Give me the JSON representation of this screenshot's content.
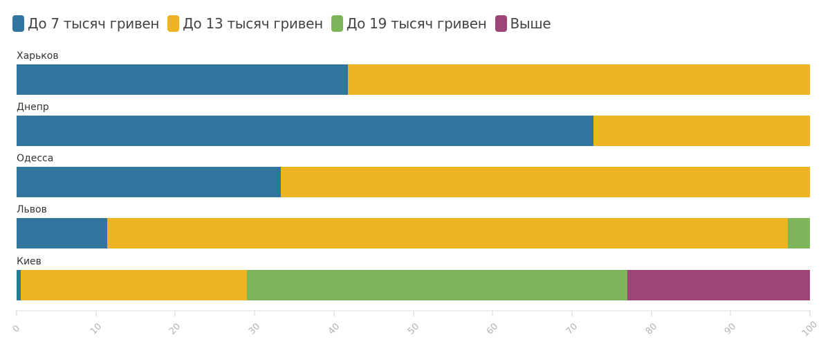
{
  "chart_data": {
    "type": "bar",
    "orientation": "horizontal",
    "stacked": true,
    "title": "",
    "xlabel": "",
    "ylabel": "",
    "xlim": [
      0,
      100
    ],
    "xticks": [
      0,
      10,
      20,
      30,
      40,
      50,
      60,
      70,
      80,
      90,
      100
    ],
    "grid": false,
    "legend_position": "top-left",
    "categories": [
      "Харьков",
      "Днепр",
      "Одесса",
      "Львов",
      "Киев"
    ],
    "series": [
      {
        "name": "До 7 тысяч гривен",
        "color": "#32769f",
        "values": [
          41.8,
          72.7,
          33.3,
          11.4,
          0.5
        ]
      },
      {
        "name": "До 13 тысяч гривен",
        "color": "#eeb421",
        "values": [
          58.2,
          27.3,
          66.7,
          85.8,
          28.5
        ]
      },
      {
        "name": "До 19 тысяч гривен",
        "color": "#7db55a",
        "values": [
          0,
          0,
          0,
          2.8,
          48.0
        ]
      },
      {
        "name": "Выше",
        "color": "#9b4677",
        "values": [
          0,
          0,
          0,
          0,
          23.0
        ]
      }
    ]
  },
  "legend": [
    {
      "label": "До 7 тысяч гривен",
      "color": "#32769f"
    },
    {
      "label": "До 13 тысяч гривен",
      "color": "#eeb421"
    },
    {
      "label": "До 19 тысяч гривен",
      "color": "#7db55a"
    },
    {
      "label": "Выше",
      "color": "#9b4677"
    }
  ],
  "axis": {
    "ticks": [
      "0",
      "10",
      "20",
      "30",
      "40",
      "50",
      "60",
      "70",
      "80",
      "90",
      "100"
    ]
  }
}
